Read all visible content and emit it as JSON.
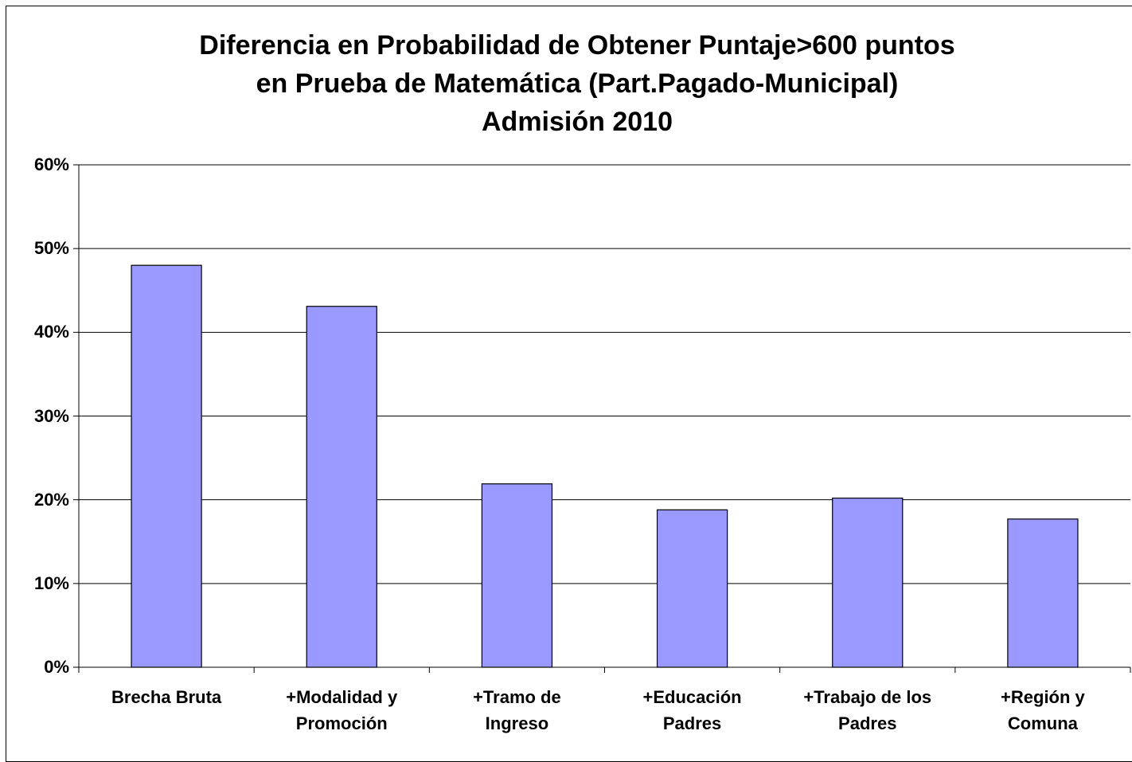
{
  "chart_data": {
    "type": "bar",
    "title": [
      "Diferencia en Probabilidad de Obtener Puntaje>600 puntos",
      "en Prueba de Matemática  (Part.Pagado-Municipal)",
      "Admisión 2010"
    ],
    "categories": [
      "Brecha Bruta",
      "+Modalidad y Promoción",
      "+Tramo de Ingreso",
      "+Educación Padres",
      "+Trabajo de los Padres",
      "+Región y Comuna"
    ],
    "values": [
      48,
      43.1,
      21.9,
      18.8,
      20.2,
      17.7
    ],
    "color": "#9999ff",
    "ylim": [
      0,
      60
    ],
    "yticks": [
      {
        "value": 0,
        "label": "0%"
      },
      {
        "value": 10,
        "label": "10%"
      },
      {
        "value": 20,
        "label": "20%"
      },
      {
        "value": 30,
        "label": "30%"
      },
      {
        "value": 40,
        "label": "40%"
      },
      {
        "value": 50,
        "label": "50%"
      },
      {
        "value": 60,
        "label": "60%"
      }
    ],
    "grid": true
  }
}
